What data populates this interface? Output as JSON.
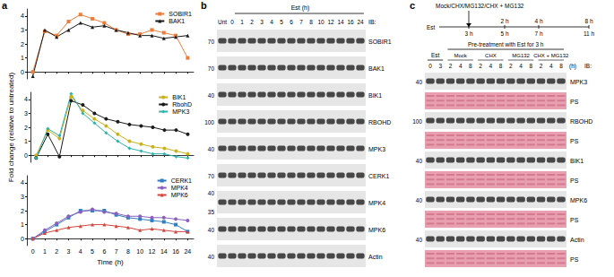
{
  "panel_a": {
    "label": "a"
  },
  "chart_data": [
    {
      "type": "line",
      "categories": [
        "0",
        "1",
        "2",
        "3",
        "4",
        "5",
        "6",
        "7",
        "8",
        "10",
        "12",
        "14",
        "16",
        "24"
      ],
      "ylim": [
        -0.5,
        4.5
      ],
      "yticks": [
        0,
        1,
        2,
        3,
        4
      ],
      "grid": false,
      "legend": "upper right",
      "tick_labels": "y",
      "series": [
        {
          "name": "SOBIR1",
          "color": "#ef7d3a",
          "marker": "square",
          "values": [
            0,
            2.9,
            2.6,
            3.6,
            4.1,
            3.8,
            3.5,
            3.0,
            2.7,
            2.7,
            3.0,
            2.8,
            2.6,
            1.0
          ]
        },
        {
          "name": "BAK1",
          "color": "#1a1a1a",
          "marker": "triangle",
          "values": [
            -0.3,
            3.0,
            2.5,
            3.0,
            3.5,
            3.2,
            3.3,
            3.0,
            2.8,
            2.6,
            2.6,
            2.4,
            2.5,
            2.6
          ]
        }
      ]
    },
    {
      "type": "line",
      "categories": [
        "0",
        "1",
        "2",
        "3",
        "4",
        "5",
        "6",
        "7",
        "8",
        "10",
        "12",
        "14",
        "16",
        "24"
      ],
      "ylim": [
        -0.5,
        4.5
      ],
      "yticks": [
        0,
        1,
        2,
        3,
        4
      ],
      "grid": false,
      "legend": "upper right",
      "tick_labels": "y",
      "ylabel": "Fold change (relative to untreated)",
      "series": [
        {
          "name": "BIK1",
          "color": "#c9b21a",
          "marker": "circle",
          "values": [
            0,
            1.8,
            1.2,
            4.2,
            3.2,
            2.6,
            2.1,
            1.5,
            1.0,
            0.8,
            0.6,
            0.5,
            0.3,
            0.1
          ]
        },
        {
          "name": "RbohD",
          "color": "#1a1a1a",
          "marker": "circle",
          "values": [
            -0.2,
            1.5,
            -0.1,
            3.9,
            3.6,
            3.0,
            2.6,
            2.4,
            2.2,
            2.1,
            2.0,
            1.8,
            1.8,
            1.5
          ]
        },
        {
          "name": "MPK3",
          "color": "#2fb3ad",
          "marker": "diamond",
          "values": [
            -0.2,
            1.9,
            1.4,
            4.4,
            3.0,
            2.3,
            1.6,
            1.0,
            0.5,
            0.3,
            0.1,
            0.1,
            -0.1,
            -0.2
          ]
        }
      ]
    },
    {
      "type": "line",
      "categories": [
        "0",
        "1",
        "2",
        "3",
        "4",
        "5",
        "6",
        "7",
        "8",
        "10",
        "12",
        "14",
        "16",
        "24"
      ],
      "ylim": [
        -0.5,
        4.5
      ],
      "yticks": [
        0,
        1,
        2,
        3,
        4
      ],
      "grid": false,
      "legend": "upper right",
      "xlabel": "Time (h)",
      "series": [
        {
          "name": "CERK1",
          "color": "#2f7fc1",
          "marker": "square",
          "values": [
            0,
            0.5,
            1.0,
            1.5,
            2.0,
            2.0,
            2.0,
            1.7,
            1.5,
            1.4,
            1.3,
            1.2,
            1.0,
            0.5
          ]
        },
        {
          "name": "MPK4",
          "color": "#8b5fbf",
          "marker": "circle",
          "values": [
            0,
            0.6,
            1.1,
            1.6,
            1.9,
            2.1,
            1.9,
            1.8,
            1.6,
            1.6,
            1.5,
            1.5,
            1.4,
            1.3
          ]
        },
        {
          "name": "MPK6",
          "color": "#d6453d",
          "marker": "triangle",
          "values": [
            0,
            0.4,
            0.6,
            0.8,
            0.9,
            1.0,
            1.0,
            0.9,
            0.8,
            0.6,
            0.7,
            0.6,
            0.5,
            0.5
          ]
        }
      ]
    }
  ],
  "panel_b": {
    "label": "b",
    "header": "Est (h)",
    "lanes": [
      "Unt",
      "0",
      "1",
      "2",
      "3",
      "4",
      "5",
      "6",
      "7",
      "8",
      "10",
      "12",
      "14",
      "16",
      "24"
    ],
    "ib": "IB:",
    "rows": [
      {
        "name": "SOBIR1",
        "mw": [
          "70"
        ]
      },
      {
        "name": "BAK1",
        "mw": [
          "70"
        ]
      },
      {
        "name": "BIK1",
        "mw": [
          "40"
        ]
      },
      {
        "name": "RBOHD",
        "mw": [
          "100"
        ]
      },
      {
        "name": "MPK3",
        "mw": [
          "40"
        ]
      },
      {
        "name": "CERK1",
        "mw": [
          "70"
        ]
      },
      {
        "name": "MPK4",
        "mw": [
          "40",
          "35"
        ]
      },
      {
        "name": "MPK6",
        "mw": [
          "40"
        ]
      },
      {
        "name": "Actin",
        "mw": [
          "40"
        ]
      }
    ]
  },
  "panel_c": {
    "label": "c",
    "timeline": {
      "top": "Mock/CHX/MG132/CHX + MG132",
      "est": "Est",
      "upper": [
        "2 h",
        "4 h",
        "8 h"
      ],
      "lower": [
        "3 h",
        "5 h",
        "7 h",
        "11 h"
      ]
    },
    "est_group": {
      "label": "Est",
      "lanes": [
        "0",
        "3"
      ]
    },
    "pretreat": "Pre-treatment with Est for 3 h",
    "groups": [
      {
        "label": "Mock",
        "lanes": [
          "2",
          "4",
          "8"
        ]
      },
      {
        "label": "CHX",
        "lanes": [
          "2",
          "4",
          "8"
        ]
      },
      {
        "label": "MG132",
        "lanes": [
          "2",
          "4",
          "8"
        ]
      },
      {
        "label": "CHX + MG132",
        "lanes": [
          "2",
          "4",
          "8"
        ]
      }
    ],
    "unit": "(h)",
    "ib": "IB:",
    "rows": [
      {
        "name": "MPK3",
        "mw": [
          "40"
        ]
      },
      {
        "name": "PS",
        "mw": [],
        "color": "#e8a0b0"
      },
      {
        "name": "RBOHD",
        "mw": [
          "100"
        ]
      },
      {
        "name": "PS",
        "mw": [],
        "color": "#e8a0b0"
      },
      {
        "name": "BIK1",
        "mw": [
          "40"
        ]
      },
      {
        "name": "PS",
        "mw": [],
        "color": "#e8a0b0"
      },
      {
        "name": "MPK6",
        "mw": [
          "40"
        ]
      },
      {
        "name": "PS",
        "mw": [],
        "color": "#e8a0b0"
      },
      {
        "name": "Actin",
        "mw": [
          "40"
        ]
      },
      {
        "name": "PS",
        "mw": [],
        "color": "#e8a0b0"
      }
    ]
  }
}
